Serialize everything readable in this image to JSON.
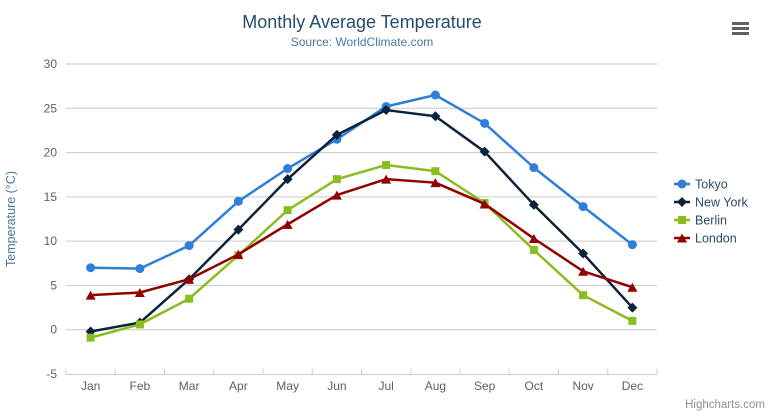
{
  "chart": {
    "title": "Monthly Average Temperature",
    "subtitle": "Source: WorldClimate.com",
    "y_axis_title": "Temperature (°C)",
    "credits": "Highcharts.com"
  },
  "colors": {
    "title_text": "#274b6d",
    "subtitle_text": "#4d759e",
    "axis_title_text": "#4d759e",
    "axis_label_text": "#606060",
    "gridline": "#c9c9c9",
    "axis_line": "#c0d0e0",
    "legend_text": "#274b6d",
    "credits_text": "#909090",
    "menu_icon": "#606060",
    "background": "#ffffff",
    "series_tokyo": "#2f7ed8",
    "series_new_york": "#0d233a",
    "series_berlin": "#8bbc21",
    "series_london": "#910000"
  },
  "chart_data": {
    "type": "line",
    "title": "Monthly Average Temperature",
    "subtitle": "Source: WorldClimate.com",
    "xlabel": "",
    "ylabel": "Temperature (°C)",
    "ylim": [
      -5,
      30
    ],
    "ytick_step": 5,
    "grid": true,
    "legend_position": "right-middle",
    "categories": [
      "Jan",
      "Feb",
      "Mar",
      "Apr",
      "May",
      "Jun",
      "Jul",
      "Aug",
      "Sep",
      "Oct",
      "Nov",
      "Dec"
    ],
    "series": [
      {
        "name": "Tokyo",
        "color": "#2f7ed8",
        "marker": "circle",
        "values": [
          7.0,
          6.9,
          9.5,
          14.5,
          18.2,
          21.5,
          25.2,
          26.5,
          23.3,
          18.3,
          13.9,
          9.6
        ]
      },
      {
        "name": "New York",
        "color": "#0d233a",
        "marker": "diamond",
        "values": [
          -0.2,
          0.8,
          5.7,
          11.3,
          17.0,
          22.0,
          24.8,
          24.1,
          20.1,
          14.1,
          8.6,
          2.5
        ]
      },
      {
        "name": "Berlin",
        "color": "#8bbc21",
        "marker": "square",
        "values": [
          -0.9,
          0.6,
          3.5,
          8.4,
          13.5,
          17.0,
          18.6,
          17.9,
          14.3,
          9.0,
          3.9,
          1.0
        ]
      },
      {
        "name": "London",
        "color": "#910000",
        "marker": "triangle",
        "values": [
          3.9,
          4.2,
          5.7,
          8.5,
          11.9,
          15.2,
          17.0,
          16.6,
          14.2,
          10.3,
          6.6,
          4.8
        ]
      }
    ]
  }
}
